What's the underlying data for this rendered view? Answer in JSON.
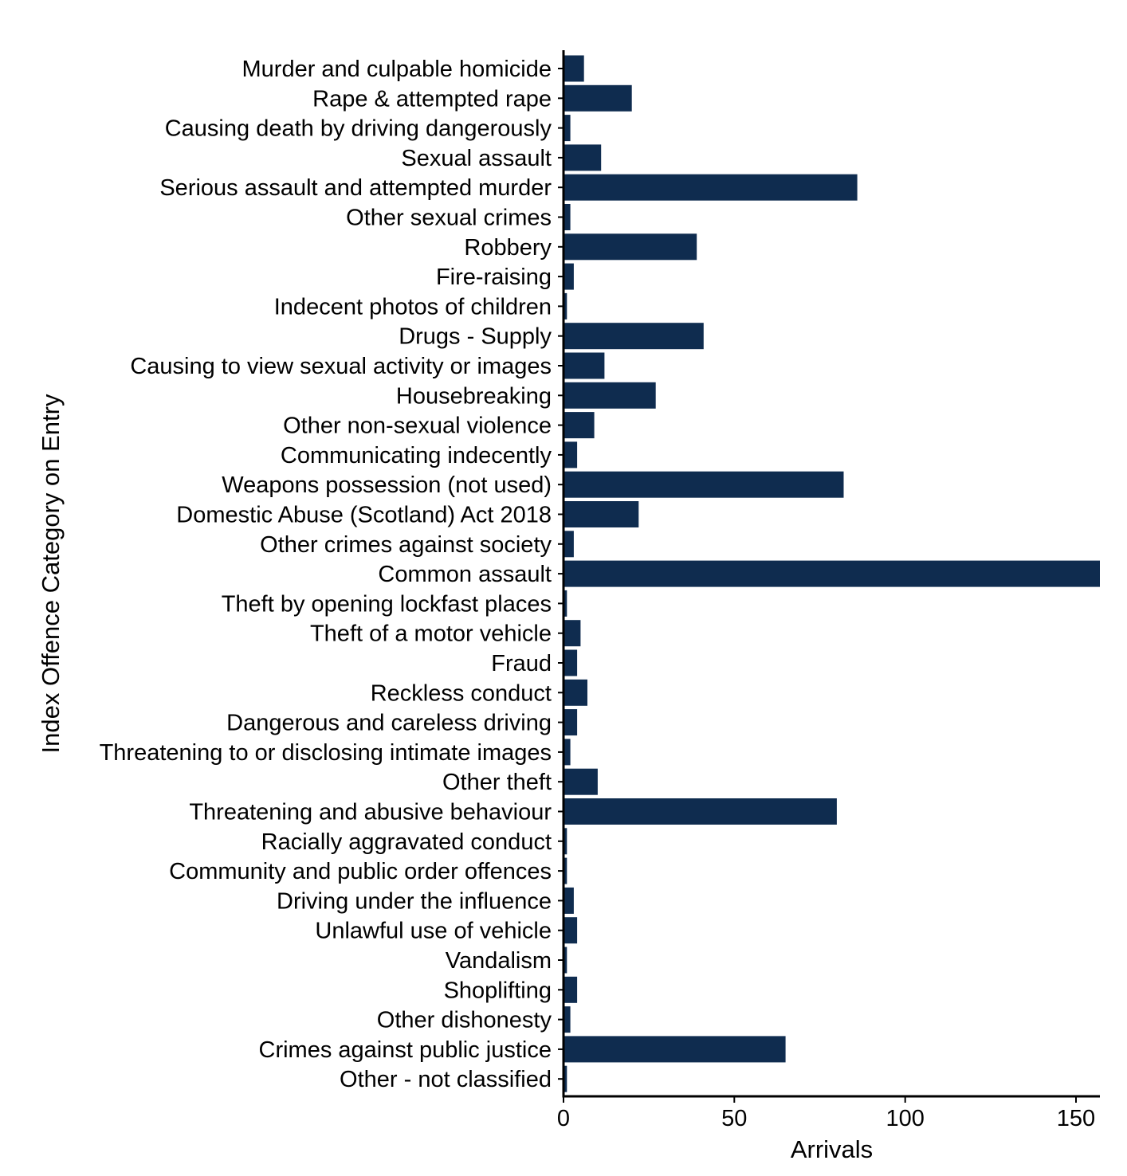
{
  "chart_data": {
    "type": "bar",
    "orientation": "horizontal",
    "xlabel": "Arrivals",
    "ylabel": "Index Offence Category on Entry",
    "xlim": [
      0,
      157
    ],
    "xticks": [
      0,
      50,
      100,
      150
    ],
    "grid": false,
    "bar_color": "#0f2c4f",
    "categories": [
      "Murder and culpable homicide",
      "Rape & attempted rape",
      "Causing death by driving dangerously",
      "Sexual assault",
      "Serious assault and attempted murder",
      "Other sexual crimes",
      "Robbery",
      "Fire-raising",
      "Indecent photos of children",
      "Drugs - Supply",
      "Causing to view sexual activity or images",
      "Housebreaking",
      "Other non-sexual violence",
      "Communicating indecently",
      "Weapons possession (not used)",
      "Domestic Abuse (Scotland) Act 2018",
      "Other crimes against society",
      "Common assault",
      "Theft by opening lockfast places",
      "Theft of a motor vehicle",
      "Fraud",
      "Reckless conduct",
      "Dangerous and careless driving",
      "Threatening to or disclosing intimate images",
      "Other theft",
      "Threatening and abusive behaviour",
      "Racially aggravated conduct",
      "Community and public order offences",
      "Driving under the influence",
      "Unlawful use of vehicle",
      "Vandalism",
      "Shoplifting",
      "Other dishonesty",
      "Crimes against public justice",
      "Other - not classified"
    ],
    "values": [
      6,
      20,
      2,
      11,
      86,
      2,
      39,
      3,
      1,
      41,
      12,
      27,
      9,
      4,
      82,
      22,
      3,
      157,
      1,
      5,
      4,
      7,
      4,
      2,
      10,
      80,
      1,
      1,
      3,
      4,
      1,
      4,
      2,
      65,
      1
    ]
  }
}
